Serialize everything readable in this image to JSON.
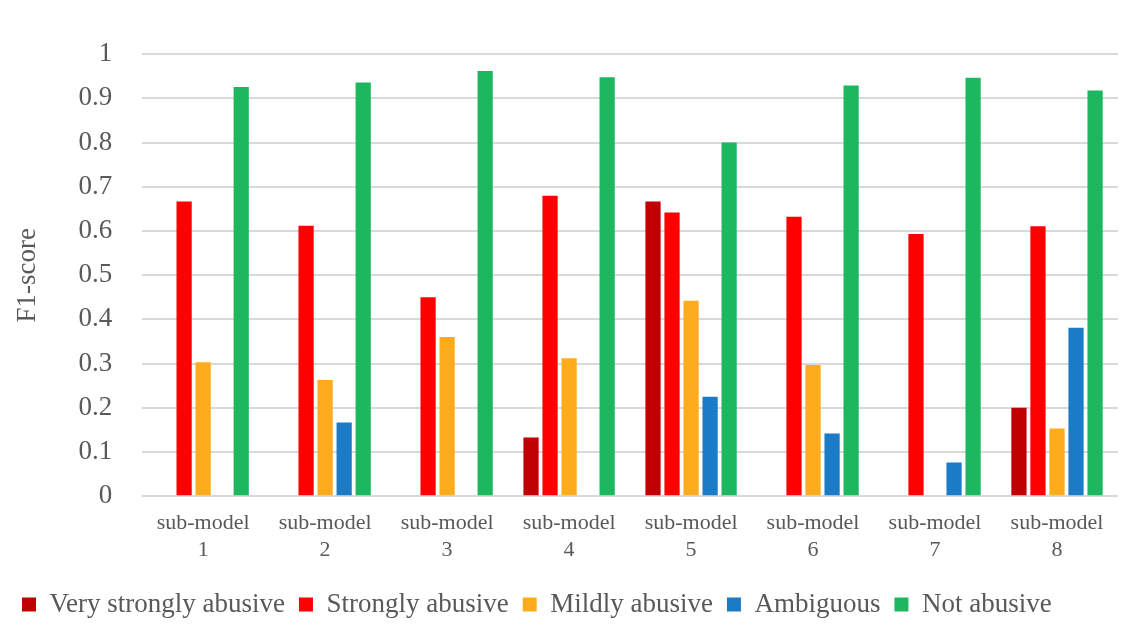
{
  "chart_data": {
    "type": "bar",
    "ylabel": "F1-score",
    "categories": [
      "sub-model 1",
      "sub-model 2",
      "sub-model 3",
      "sub-model 4",
      "sub-model 5",
      "sub-model 6",
      "sub-model 7",
      "sub-model 8"
    ],
    "series": [
      {
        "name": "Very strongly abusive",
        "color": "#c00000",
        "values": [
          0,
          0,
          0,
          0.133,
          0.667,
          0,
          0,
          0.2
        ]
      },
      {
        "name": "Strongly abusive",
        "color": "#ff0000",
        "values": [
          0.667,
          0.612,
          0.45,
          0.68,
          0.642,
          0.632,
          0.593,
          0.611
        ]
      },
      {
        "name": "Mildly abusive",
        "color": "#ffab1e",
        "values": [
          0.303,
          0.263,
          0.36,
          0.312,
          0.442,
          0.297,
          0,
          0.153
        ]
      },
      {
        "name": "Ambiguous",
        "color": "#1b7bc6",
        "values": [
          0,
          0.167,
          0,
          0,
          0.225,
          0.142,
          0.076,
          0.381
        ]
      },
      {
        "name": "Not abusive",
        "color": "#1cb75e",
        "values": [
          0.926,
          0.936,
          0.962,
          0.948,
          0.8,
          0.929,
          0.947,
          0.918
        ]
      }
    ],
    "ylim": [
      0,
      1
    ],
    "yticks": [
      0,
      0.1,
      0.2,
      0.3,
      0.4,
      0.5,
      0.6,
      0.7,
      0.8,
      0.9,
      1
    ],
    "grid": "y",
    "legend": "bottom"
  }
}
